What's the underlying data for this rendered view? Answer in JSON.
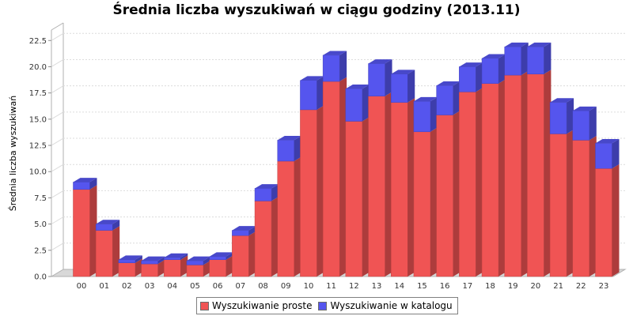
{
  "chart_data": {
    "type": "bar",
    "stacked": true,
    "three_d": true,
    "title": "Średnia liczba wyszukiwań w ciągu godziny (2013.11)",
    "xlabel": "",
    "ylabel": "Średnia liczba wyszukiwań",
    "categories": [
      "00",
      "01",
      "02",
      "03",
      "04",
      "05",
      "06",
      "07",
      "08",
      "09",
      "10",
      "11",
      "12",
      "13",
      "14",
      "15",
      "16",
      "17",
      "18",
      "19",
      "20",
      "21",
      "22",
      "23"
    ],
    "series": [
      {
        "name": "Wyszukiwanie proste",
        "color": "#f05454",
        "values": [
          8.3,
          4.4,
          1.3,
          1.2,
          1.6,
          1.1,
          1.6,
          3.9,
          7.2,
          11.0,
          15.9,
          18.6,
          14.8,
          17.2,
          16.6,
          13.8,
          15.4,
          17.6,
          18.4,
          19.2,
          19.3,
          13.6,
          13.0,
          10.3
        ]
      },
      {
        "name": "Wyszukiwanie w katalogu",
        "color": "#5555ee",
        "values": [
          0.7,
          0.6,
          0.3,
          0.3,
          0.2,
          0.4,
          0.3,
          0.5,
          1.2,
          2.0,
          2.8,
          2.5,
          3.1,
          3.1,
          2.7,
          2.9,
          2.8,
          2.4,
          2.4,
          2.7,
          2.6,
          3.0,
          2.8,
          2.4
        ]
      }
    ],
    "ylim": [
      0,
      23.5
    ],
    "yticks": [
      "0.0",
      "2.5",
      "5.0",
      "7.5",
      "10.0",
      "12.5",
      "15.0",
      "17.5",
      "20.0",
      "22.5"
    ],
    "grid": true,
    "legend_position": "bottom"
  }
}
